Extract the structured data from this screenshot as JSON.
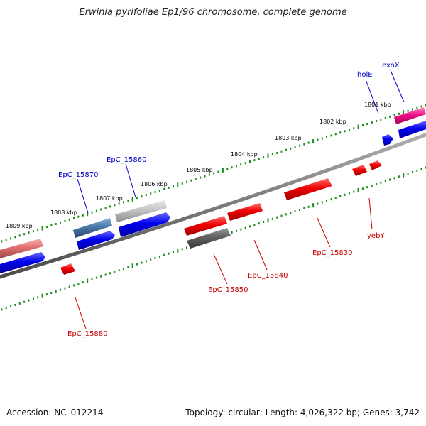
{
  "title": "Erwinia pyrifoliae Ep1/96 chromosome, complete genome",
  "footer": {
    "accession": "Accession: NC_012214",
    "summary": "Topology: circular; Length: 4,026,322 bp; Genes: 3,742"
  },
  "colors": {
    "backbone": "#7a7a7a",
    "tick": "#1a8a1a",
    "forward_label": "#0000cc",
    "reverse_label": "#cc0000",
    "cds_blue": "#0000ee",
    "cds_red": "#ee0000"
  },
  "kbp_labels": [
    "1801 kbp",
    "1802 kbp",
    "1803 kbp",
    "1804 kbp",
    "1805 kbp",
    "1806 kbp",
    "1807 kbp",
    "1808 kbp",
    "1809 kbp"
  ],
  "genes": {
    "exoX": "exoX",
    "holE": "holE",
    "EpC_15860": "EpC_15860",
    "EpC_15870": "EpC_15870",
    "EpC_15830": "EpC_15830",
    "yebY": "yebY",
    "EpC_15840": "EpC_15840",
    "EpC_15850": "EpC_15850",
    "EpC_15880": "EpC_15880"
  }
}
